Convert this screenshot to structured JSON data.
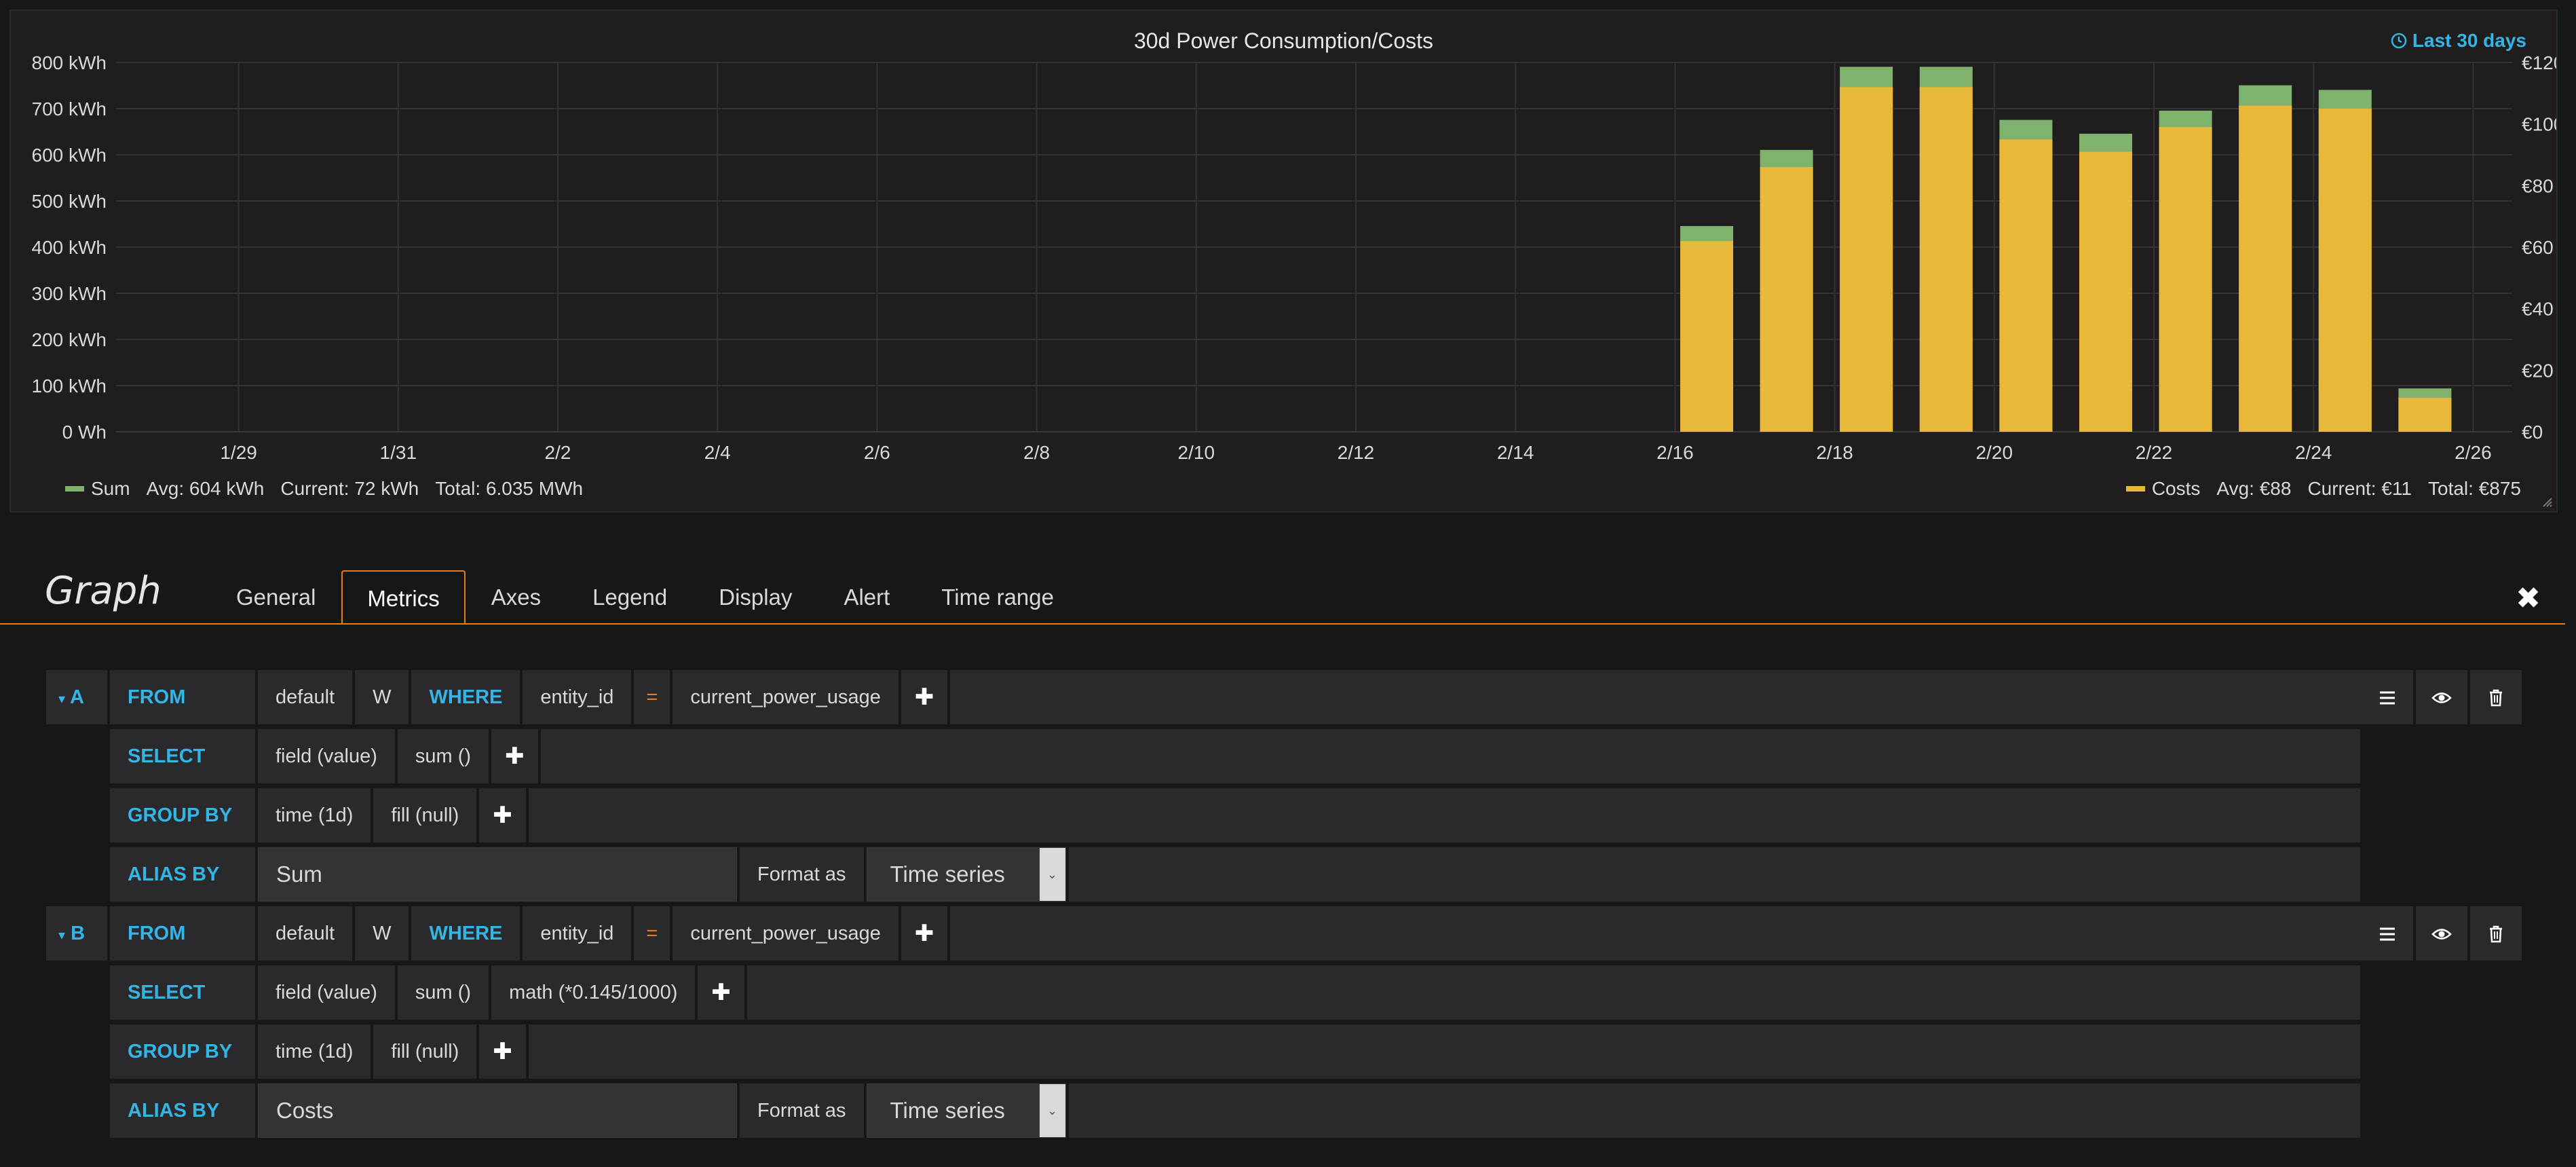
{
  "panel": {
    "title": "30d Power Consumption/Costs",
    "time_range": "Last 30 days"
  },
  "chart_data": {
    "type": "bar",
    "title": "30d Power Consumption/Costs",
    "x_ticks": [
      "1/29",
      "1/31",
      "2/2",
      "2/4",
      "2/6",
      "2/8",
      "2/10",
      "2/12",
      "2/14",
      "2/16",
      "2/18",
      "2/20",
      "2/22",
      "2/24",
      "2/26"
    ],
    "y_left_ticks": [
      "0 Wh",
      "100 kWh",
      "200 kWh",
      "300 kWh",
      "400 kWh",
      "500 kWh",
      "600 kWh",
      "700 kWh",
      "800 kWh"
    ],
    "y_left_range": [
      0,
      800
    ],
    "y_right_ticks": [
      "€0",
      "€20",
      "€40",
      "€60",
      "€80",
      "€100",
      "€120"
    ],
    "y_right_range": [
      0,
      120
    ],
    "stacked": true,
    "grid": true,
    "categories": [
      "2/17",
      "2/18",
      "2/19",
      "2/20",
      "2/21",
      "2/22",
      "2/23",
      "2/24",
      "2/25",
      "2/26"
    ],
    "series": [
      {
        "name": "Costs",
        "axis": "right",
        "color": "#eab839",
        "values": [
          62,
          86,
          112,
          112,
          95,
          91,
          99,
          106,
          105,
          11
        ]
      },
      {
        "name": "Sum",
        "axis": "left",
        "color": "#7eb26d",
        "values": [
          425,
          590,
          770,
          770,
          655,
          625,
          675,
          730,
          720,
          72
        ]
      }
    ]
  },
  "legend": {
    "sum": {
      "name": "Sum",
      "avg": "Avg: 604 kWh",
      "current": "Current: 72 kWh",
      "total": "Total: 6.035 MWh",
      "color": "#7eb26d"
    },
    "costs": {
      "name": "Costs",
      "avg": "Avg: €88",
      "current": "Current: €11",
      "total": "Total: €875",
      "color": "#eab839"
    }
  },
  "editor": {
    "title": "Graph",
    "tabs": [
      "General",
      "Metrics",
      "Axes",
      "Legend",
      "Display",
      "Alert",
      "Time range"
    ],
    "active_tab": "Metrics"
  },
  "queries": {
    "a": {
      "ref": "A",
      "from": {
        "label": "FROM",
        "policy": "default",
        "measurement": "W",
        "where": "WHERE",
        "key": "entity_id",
        "op": "=",
        "value": "current_power_usage"
      },
      "select": {
        "label": "SELECT",
        "parts": [
          "field (value)",
          "sum ()"
        ]
      },
      "group_by": {
        "label": "GROUP BY",
        "parts": [
          "time (1d)",
          "fill (null)"
        ]
      },
      "alias": {
        "label": "ALIAS BY",
        "value": "Sum",
        "format_label": "Format as",
        "format_value": "Time series"
      }
    },
    "b": {
      "ref": "B",
      "from": {
        "label": "FROM",
        "policy": "default",
        "measurement": "W",
        "where": "WHERE",
        "key": "entity_id",
        "op": "=",
        "value": "current_power_usage"
      },
      "select": {
        "label": "SELECT",
        "parts": [
          "field (value)",
          "sum ()",
          "math (*0.145/1000)"
        ]
      },
      "group_by": {
        "label": "GROUP BY",
        "parts": [
          "time (1d)",
          "fill (null)"
        ]
      },
      "alias": {
        "label": "ALIAS BY",
        "value": "Costs",
        "format_label": "Format as",
        "format_value": "Time series"
      }
    }
  },
  "icons": {
    "plus": "plus-icon",
    "menu": "hamburger-icon",
    "eye": "eye-icon",
    "trash": "trash-icon",
    "close": "close-icon",
    "clock": "clock-icon"
  }
}
